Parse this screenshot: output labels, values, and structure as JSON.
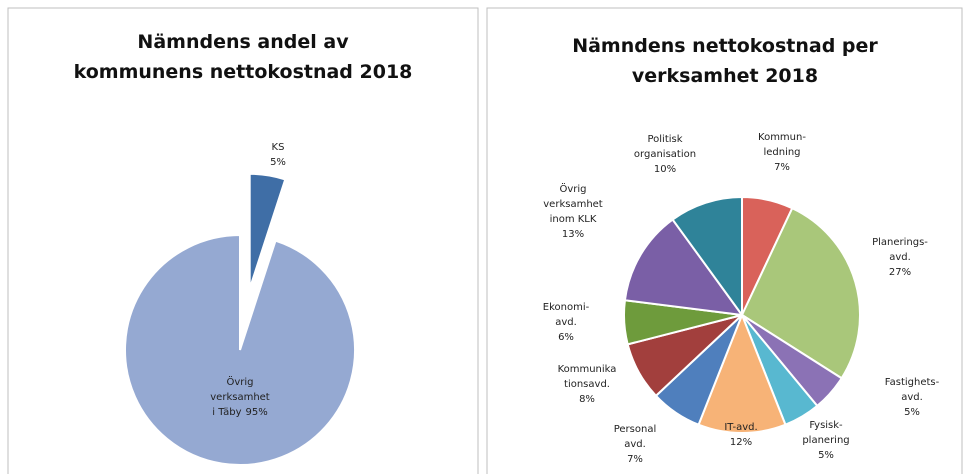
{
  "chart_data": [
    {
      "type": "pie",
      "title": [
        "Nämndens andel av",
        "kommunens nettokostnad 2018"
      ],
      "categories": [
        [
          "KS"
        ],
        [
          "Övrig",
          "verksamhet",
          "i Täby"
        ]
      ],
      "values": [
        5,
        95
      ],
      "value_labels": [
        "5%",
        "95%"
      ],
      "colors": [
        "#3f6ea6",
        "#95a9d2"
      ],
      "exploded": [
        true,
        false
      ]
    },
    {
      "type": "pie",
      "title": [
        "Nämndens nettokostnad per",
        "verksamhet 2018"
      ],
      "categories": [
        [
          "Kommun-",
          "ledning"
        ],
        [
          "Planerings-",
          "avd."
        ],
        [
          "Fastighets-",
          "avd."
        ],
        [
          "Fysisk-",
          "planering"
        ],
        [
          "IT-avd."
        ],
        [
          "Personal",
          "avd."
        ],
        [
          "Kommunika",
          "tionsavd."
        ],
        [
          "Ekonomi-",
          "avd."
        ],
        [
          "Övrig",
          "verksamhet",
          "inom KLK"
        ],
        [
          "Politisk",
          "organisation"
        ]
      ],
      "values": [
        7,
        27,
        5,
        5,
        12,
        7,
        8,
        6,
        13,
        10
      ],
      "value_labels": [
        "7%",
        "27%",
        "5%",
        "5%",
        "12%",
        "7%",
        "8%",
        "6%",
        "13%",
        "10%"
      ],
      "colors": [
        "#d9625a",
        "#a9c77a",
        "#8b72b5",
        "#58b8d0",
        "#f7b377",
        "#4f7fbd",
        "#a23f3d",
        "#6e9b3c",
        "#7a5fa6",
        "#2f8399"
      ],
      "exploded": [
        false,
        false,
        false,
        false,
        false,
        false,
        false,
        false,
        false,
        false
      ]
    }
  ]
}
